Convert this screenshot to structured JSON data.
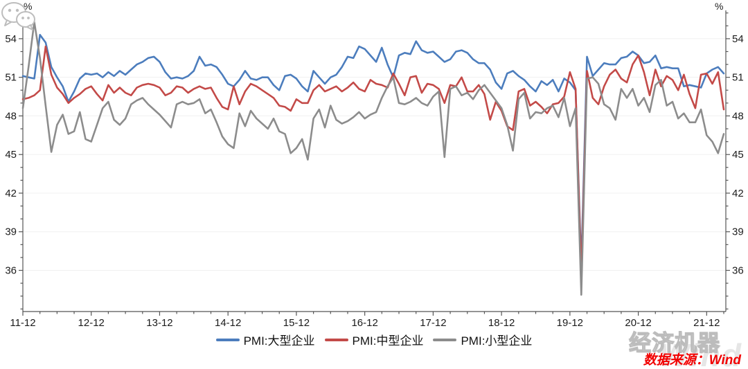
{
  "unit_label": "%",
  "source_note": "数据来源：Wind",
  "watermark": {
    "brand": "经济机器",
    "wind": "Wind",
    "wechat_icon": "wechat-icon"
  },
  "legend": [
    {
      "label": "PMI:大型企业",
      "color": "#4c7dbd"
    },
    {
      "label": "PMI:中型企业",
      "color": "#c34a48"
    },
    {
      "label": "PMI:小型企业",
      "color": "#8c8c8c"
    }
  ],
  "chart_data": {
    "type": "line",
    "title": "",
    "xlabel": "",
    "ylabel": "%",
    "x_start": "2011-12",
    "x_end": "2022-03",
    "x_frequency": "monthly",
    "x_tick_labels": [
      "11-12",
      "12-12",
      "13-12",
      "14-12",
      "15-12",
      "16-12",
      "17-12",
      "18-12",
      "19-12",
      "20-12",
      "21-12"
    ],
    "y_major_ticks": [
      36,
      39,
      42,
      45,
      48,
      51,
      54
    ],
    "ylim": [
      32.8,
      56.2
    ],
    "grid": "horizontal-major",
    "legend_position": "bottom-center",
    "series": [
      {
        "name": "PMI:大型企业",
        "color": "#4c7dbd",
        "values": [
          51.1,
          51.0,
          50.9,
          54.3,
          53.7,
          51.8,
          51.0,
          50.3,
          49.1,
          49.9,
          50.9,
          51.3,
          51.2,
          51.3,
          51.0,
          51.4,
          51.1,
          51.5,
          51.2,
          51.6,
          52.0,
          52.2,
          52.5,
          52.6,
          52.2,
          51.4,
          50.9,
          51.0,
          50.9,
          51.1,
          51.5,
          52.6,
          51.9,
          52.0,
          51.8,
          51.2,
          50.5,
          50.3,
          50.8,
          51.5,
          50.9,
          50.8,
          51.0,
          51.0,
          50.4,
          50.0,
          51.1,
          51.2,
          50.9,
          50.3,
          49.9,
          51.5,
          51.0,
          50.5,
          51.0,
          51.2,
          51.8,
          52.6,
          52.5,
          53.4,
          53.2,
          52.7,
          52.2,
          53.3,
          52.0,
          51.0,
          52.7,
          52.9,
          52.8,
          53.8,
          53.1,
          52.9,
          53.0,
          52.6,
          52.2,
          52.4,
          53.0,
          53.1,
          52.9,
          52.4,
          52.1,
          52.1,
          51.6,
          50.6,
          50.1,
          51.3,
          51.5,
          51.1,
          50.8,
          50.3,
          49.9,
          50.7,
          50.4,
          50.8,
          49.9,
          50.9,
          50.6,
          50.0,
          36.3,
          52.6,
          51.1,
          51.6,
          52.1,
          52.0,
          52.0,
          52.5,
          52.6,
          53.0,
          52.7,
          52.1,
          52.2,
          52.7,
          51.7,
          51.8,
          51.7,
          51.7,
          50.3,
          50.4,
          50.3,
          50.2,
          51.3,
          51.6,
          51.8,
          51.3
        ]
      },
      {
        "name": "PMI:中型企业",
        "color": "#c34a48",
        "values": [
          49.3,
          49.4,
          49.6,
          50.0,
          53.4,
          51.2,
          50.2,
          49.7,
          49.0,
          49.4,
          49.7,
          50.1,
          50.3,
          49.7,
          49.2,
          50.4,
          49.8,
          50.2,
          49.8,
          49.6,
          50.2,
          50.4,
          50.5,
          50.4,
          50.2,
          49.6,
          49.8,
          50.3,
          50.2,
          49.8,
          50.1,
          50.3,
          50.1,
          50.2,
          49.4,
          48.7,
          48.5,
          50.3,
          48.9,
          49.9,
          50.5,
          50.3,
          50.0,
          49.7,
          49.4,
          48.8,
          48.7,
          48.4,
          49.3,
          49.0,
          49.0,
          50.0,
          50.4,
          49.9,
          50.1,
          50.3,
          49.9,
          50.2,
          50.6,
          50.1,
          49.9,
          50.8,
          50.5,
          50.4,
          50.2,
          51.3,
          50.5,
          49.6,
          51.0,
          51.1,
          49.8,
          50.5,
          50.4,
          50.1,
          49.0,
          50.4,
          50.3,
          51.0,
          49.9,
          49.9,
          50.4,
          49.7,
          47.7,
          49.1,
          48.4,
          47.2,
          46.9,
          49.9,
          50.1,
          48.8,
          49.1,
          48.7,
          48.2,
          48.9,
          49.0,
          49.5,
          51.4,
          50.1,
          35.5,
          51.5,
          49.4,
          48.9,
          50.3,
          51.2,
          51.6,
          50.9,
          50.6,
          52.0,
          52.7,
          51.4,
          49.6,
          51.6,
          50.3,
          51.1,
          50.8,
          50.0,
          51.2,
          49.7,
          48.6,
          51.2,
          51.3,
          50.5,
          51.4,
          48.5
        ]
      },
      {
        "name": "PMI:小型企业",
        "color": "#8c8c8c",
        "values": [
          48.6,
          51.8,
          55.3,
          52.5,
          48.8,
          45.2,
          47.3,
          48.1,
          46.6,
          46.8,
          48.3,
          46.2,
          46.0,
          47.3,
          48.6,
          49.1,
          47.7,
          47.3,
          47.8,
          48.9,
          49.2,
          49.4,
          48.9,
          48.5,
          48.1,
          47.6,
          47.1,
          48.9,
          49.1,
          48.9,
          49.0,
          49.3,
          48.2,
          48.5,
          47.5,
          46.4,
          45.8,
          45.5,
          48.2,
          47.2,
          48.4,
          47.8,
          47.4,
          47.0,
          47.8,
          46.8,
          46.6,
          45.1,
          45.5,
          46.2,
          44.6,
          47.8,
          48.5,
          47.1,
          48.8,
          47.7,
          47.4,
          47.6,
          47.9,
          48.3,
          47.8,
          48.1,
          48.3,
          49.4,
          50.3,
          51.0,
          49.0,
          48.9,
          49.1,
          49.4,
          49.0,
          48.8,
          49.5,
          49.9,
          44.8,
          50.1,
          50.3,
          49.6,
          49.8,
          49.3,
          50.0,
          50.4,
          49.8,
          49.2,
          48.6,
          47.3,
          45.3,
          49.3,
          49.8,
          47.8,
          48.3,
          48.2,
          48.6,
          48.8,
          47.9,
          49.4,
          47.2,
          48.6,
          34.1,
          50.9,
          51.0,
          50.5,
          48.9,
          48.6,
          47.7,
          50.1,
          49.4,
          50.1,
          48.8,
          49.4,
          48.3,
          50.4,
          50.8,
          48.8,
          49.1,
          47.8,
          48.2,
          47.5,
          47.5,
          48.5,
          46.5,
          46.0,
          45.1,
          46.6
        ]
      }
    ]
  }
}
